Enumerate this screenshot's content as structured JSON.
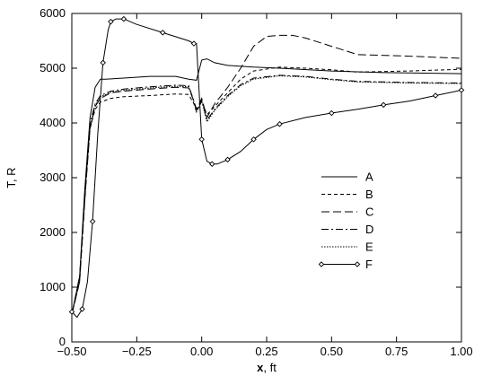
{
  "chart_data": {
    "type": "line",
    "xlabel_bold": "x",
    "xlabel_rest": ", ft",
    "ylabel": "T, R",
    "xlim": [
      -0.5,
      1.0
    ],
    "ylim": [
      0,
      6000
    ],
    "xticks": [
      -0.5,
      -0.25,
      0.0,
      0.25,
      0.5,
      0.75,
      1.0
    ],
    "xtick_labels": [
      "−0.50",
      "−0.25",
      "0.00",
      "0.25",
      "0.50",
      "0.75",
      "1.00"
    ],
    "yticks": [
      0,
      1000,
      2000,
      3000,
      4000,
      5000,
      6000
    ],
    "ytick_labels": [
      "0",
      "1000",
      "2000",
      "3000",
      "4000",
      "5000",
      "6000"
    ],
    "grid": false,
    "legend_position": "center-right",
    "series": [
      {
        "name": "A",
        "style": "solid",
        "x": [
          -0.5,
          -0.47,
          -0.45,
          -0.43,
          -0.41,
          -0.39,
          -0.37,
          -0.3,
          -0.2,
          -0.1,
          -0.05,
          -0.02,
          0.0,
          0.02,
          0.05,
          0.1,
          0.2,
          0.3,
          0.5,
          0.7,
          1.0
        ],
        "y": [
          500,
          1200,
          2800,
          4100,
          4650,
          4800,
          4800,
          4820,
          4850,
          4850,
          4800,
          4780,
          5150,
          5170,
          5100,
          5050,
          5020,
          5000,
          4950,
          4920,
          4900
        ]
      },
      {
        "name": "B",
        "style": "dashed",
        "x": [
          -0.5,
          -0.47,
          -0.45,
          -0.43,
          -0.41,
          -0.39,
          -0.35,
          -0.3,
          -0.2,
          -0.1,
          -0.05,
          -0.03,
          -0.02,
          0.0,
          0.02,
          0.05,
          0.1,
          0.15,
          0.2,
          0.3,
          0.4,
          0.5,
          0.6,
          0.8,
          1.0
        ],
        "y": [
          500,
          1100,
          2600,
          3900,
          4250,
          4380,
          4450,
          4480,
          4500,
          4530,
          4520,
          4350,
          4200,
          4400,
          4150,
          4300,
          4550,
          4800,
          4950,
          5020,
          5000,
          4970,
          4930,
          4950,
          4980
        ]
      },
      {
        "name": "C",
        "style": "longdash",
        "x": [
          -0.5,
          -0.47,
          -0.45,
          -0.43,
          -0.41,
          -0.39,
          -0.35,
          -0.3,
          -0.2,
          -0.1,
          -0.05,
          -0.03,
          -0.02,
          0.0,
          0.02,
          0.05,
          0.1,
          0.15,
          0.2,
          0.25,
          0.3,
          0.35,
          0.4,
          0.5,
          0.6,
          0.8,
          1.0
        ],
        "y": [
          500,
          1100,
          2600,
          3900,
          4300,
          4450,
          4550,
          4580,
          4620,
          4650,
          4640,
          4400,
          4250,
          4450,
          4100,
          4350,
          4650,
          5000,
          5400,
          5580,
          5600,
          5600,
          5550,
          5400,
          5250,
          5220,
          5180
        ]
      },
      {
        "name": "D",
        "style": "dashdot",
        "x": [
          -0.5,
          -0.47,
          -0.45,
          -0.43,
          -0.41,
          -0.39,
          -0.35,
          -0.3,
          -0.2,
          -0.1,
          -0.05,
          -0.03,
          -0.02,
          0.0,
          0.02,
          0.05,
          0.1,
          0.15,
          0.2,
          0.3,
          0.4,
          0.5,
          0.6,
          0.8,
          1.0
        ],
        "y": [
          500,
          1200,
          2700,
          4000,
          4350,
          4500,
          4580,
          4620,
          4660,
          4690,
          4680,
          4400,
          4220,
          4420,
          4050,
          4250,
          4500,
          4700,
          4820,
          4870,
          4850,
          4800,
          4760,
          4740,
          4730
        ]
      },
      {
        "name": "E",
        "style": "dotted",
        "x": [
          -0.5,
          -0.47,
          -0.45,
          -0.43,
          -0.41,
          -0.39,
          -0.35,
          -0.3,
          -0.2,
          -0.1,
          -0.05,
          -0.03,
          -0.02,
          0.0,
          0.02,
          0.05,
          0.1,
          0.15,
          0.2,
          0.3,
          0.4,
          0.5,
          0.6,
          0.8,
          1.0
        ],
        "y": [
          500,
          1150,
          2650,
          3950,
          4320,
          4480,
          4560,
          4600,
          4640,
          4670,
          4660,
          4380,
          4200,
          4400,
          4020,
          4230,
          4480,
          4680,
          4800,
          4860,
          4840,
          4790,
          4750,
          4730,
          4720
        ]
      },
      {
        "name": "F",
        "style": "solid-diamond",
        "x": [
          -0.5,
          -0.48,
          -0.46,
          -0.44,
          -0.42,
          -0.4,
          -0.38,
          -0.36,
          -0.35,
          -0.33,
          -0.3,
          -0.25,
          -0.15,
          -0.05,
          -0.03,
          -0.02,
          0.0,
          0.02,
          0.04,
          0.06,
          0.1,
          0.15,
          0.2,
          0.25,
          0.3,
          0.4,
          0.5,
          0.6,
          0.7,
          0.8,
          0.9,
          1.0
        ],
        "y": [
          550,
          450,
          600,
          1100,
          2200,
          3800,
          5100,
          5700,
          5850,
          5900,
          5900,
          5800,
          5650,
          5500,
          5450,
          5450,
          3700,
          3300,
          3250,
          3250,
          3330,
          3480,
          3700,
          3880,
          3980,
          4100,
          4180,
          4250,
          4330,
          4400,
          4500,
          4600
        ]
      }
    ]
  }
}
